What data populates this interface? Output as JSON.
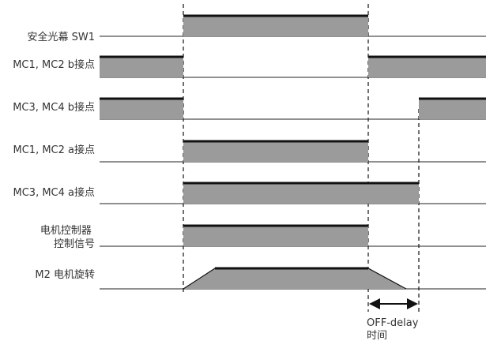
{
  "colors": {
    "fill": "#9b9b9b",
    "edge": "#111111",
    "baseline": "#222222",
    "text": "#333333",
    "dash": "#111111"
  },
  "signals": [
    {
      "id": "sw1",
      "label_lines": [
        "安全光幕 SW1"
      ]
    },
    {
      "id": "mc12b",
      "label_lines": [
        "MC1, MC2 b接点"
      ]
    },
    {
      "id": "mc34b",
      "label_lines": [
        "MC3, MC4 b接点"
      ]
    },
    {
      "id": "mc12a",
      "label_lines": [
        "MC1, MC2 a接点"
      ]
    },
    {
      "id": "mc34a",
      "label_lines": [
        "MC3, MC4 a接点"
      ]
    },
    {
      "id": "ctrl",
      "label_lines": [
        "电机控制器",
        "控制信号"
      ]
    },
    {
      "id": "m2",
      "label_lines": [
        "M2 电机旋转"
      ]
    }
  ],
  "off_delay": {
    "label_lines": [
      "OFF-delay",
      "时间"
    ],
    "arrow_icon": "double-arrow-icon"
  }
}
